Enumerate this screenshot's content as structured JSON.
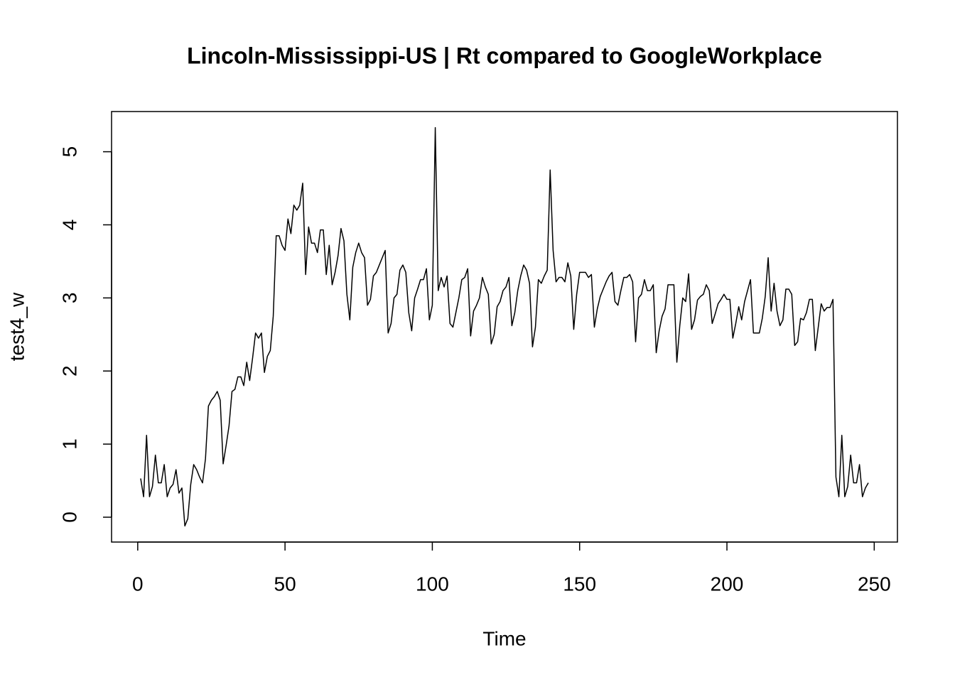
{
  "chart_data": {
    "type": "line",
    "title": "Lincoln-Mississippi-US | Rt compared to GoogleWorkplace",
    "xlabel": "Time",
    "ylabel": "test4_w",
    "color": "#000000",
    "x": [
      1,
      2,
      3,
      4,
      5,
      6,
      7,
      8,
      9,
      10,
      11,
      12,
      13,
      14,
      15,
      16,
      17,
      18,
      19,
      20,
      21,
      22,
      23,
      24,
      25,
      26,
      27,
      28,
      29,
      30,
      31,
      32,
      33,
      34,
      35,
      36,
      37,
      38,
      39,
      40,
      41,
      42,
      43,
      44,
      45,
      46,
      47,
      48,
      49,
      50,
      51,
      52,
      53,
      54,
      55,
      56,
      57,
      58,
      59,
      60,
      61,
      62,
      63,
      64,
      65,
      66,
      67,
      68,
      69,
      70,
      71,
      72,
      73,
      74,
      75,
      76,
      77,
      78,
      79,
      80,
      81,
      82,
      83,
      84,
      85,
      86,
      87,
      88,
      89,
      90,
      91,
      92,
      93,
      94,
      95,
      96,
      97,
      98,
      99,
      100,
      101,
      102,
      103,
      104,
      105,
      106,
      107,
      108,
      109,
      110,
      111,
      112,
      113,
      114,
      115,
      116,
      117,
      118,
      119,
      120,
      121,
      122,
      123,
      124,
      125,
      126,
      127,
      128,
      129,
      130,
      131,
      132,
      133,
      134,
      135,
      136,
      137,
      138,
      139,
      140,
      141,
      142,
      143,
      144,
      145,
      146,
      147,
      148,
      149,
      150,
      151,
      152,
      153,
      154,
      155,
      156,
      157,
      158,
      159,
      160,
      161,
      162,
      163,
      164,
      165,
      166,
      167,
      168,
      169,
      170,
      171,
      172,
      173,
      174,
      175,
      176,
      177,
      178,
      179,
      180,
      181,
      182,
      183,
      184,
      185,
      186,
      187,
      188,
      189,
      190,
      191,
      192,
      193,
      194,
      195,
      196,
      197,
      198,
      199,
      200,
      201,
      202,
      203,
      204,
      205,
      206,
      207,
      208,
      209,
      210,
      211,
      212,
      213,
      214,
      215,
      216,
      217,
      218,
      219,
      220,
      221,
      222,
      223,
      224,
      225,
      226,
      227,
      228,
      229,
      230,
      231,
      232,
      233,
      234,
      235,
      236,
      237,
      238,
      239,
      240,
      241,
      242,
      243,
      244,
      245,
      246,
      247,
      248
    ],
    "values": [
      0.53,
      0.28,
      1.12,
      0.28,
      0.42,
      0.85,
      0.47,
      0.47,
      0.72,
      0.28,
      0.4,
      0.45,
      0.65,
      0.33,
      0.4,
      -0.12,
      -0.02,
      0.45,
      0.72,
      0.65,
      0.55,
      0.47,
      0.8,
      1.52,
      1.6,
      1.65,
      1.72,
      1.6,
      0.73,
      0.98,
      1.25,
      1.72,
      1.75,
      1.92,
      1.92,
      1.8,
      2.12,
      1.87,
      2.18,
      2.52,
      2.45,
      2.52,
      1.98,
      2.2,
      2.28,
      2.75,
      3.85,
      3.85,
      3.72,
      3.65,
      4.08,
      3.88,
      4.27,
      4.2,
      4.27,
      4.57,
      3.32,
      3.97,
      3.75,
      3.75,
      3.62,
      3.93,
      3.93,
      3.32,
      3.72,
      3.18,
      3.35,
      3.58,
      3.95,
      3.78,
      3.05,
      2.7,
      3.42,
      3.62,
      3.75,
      3.62,
      3.55,
      2.9,
      2.98,
      3.3,
      3.35,
      3.45,
      3.55,
      3.65,
      2.52,
      2.65,
      3.0,
      3.05,
      3.38,
      3.45,
      3.35,
      2.8,
      2.55,
      3.0,
      3.12,
      3.25,
      3.25,
      3.4,
      2.7,
      2.9,
      5.33,
      3.1,
      3.28,
      3.15,
      3.3,
      2.65,
      2.6,
      2.8,
      3.0,
      3.25,
      3.28,
      3.4,
      2.48,
      2.82,
      2.9,
      3.0,
      3.28,
      3.15,
      3.05,
      2.37,
      2.5,
      2.88,
      2.95,
      3.1,
      3.15,
      3.28,
      2.62,
      2.8,
      3.1,
      3.3,
      3.45,
      3.38,
      3.2,
      2.33,
      2.6,
      3.25,
      3.2,
      3.3,
      3.38,
      4.75,
      3.65,
      3.22,
      3.28,
      3.28,
      3.22,
      3.48,
      3.3,
      2.57,
      3.05,
      3.35,
      3.35,
      3.35,
      3.28,
      3.32,
      2.6,
      2.85,
      3.02,
      3.12,
      3.22,
      3.3,
      3.35,
      2.95,
      2.9,
      3.1,
      3.28,
      3.28,
      3.32,
      3.22,
      2.4,
      3.0,
      3.05,
      3.25,
      3.1,
      3.1,
      3.18,
      2.25,
      2.55,
      2.75,
      2.85,
      3.18,
      3.18,
      3.18,
      2.12,
      2.62,
      3.0,
      2.95,
      3.33,
      2.57,
      2.7,
      2.97,
      3.02,
      3.05,
      3.18,
      3.1,
      2.65,
      2.78,
      2.92,
      2.98,
      3.05,
      2.98,
      2.98,
      2.45,
      2.65,
      2.88,
      2.7,
      2.95,
      3.1,
      3.25,
      2.52,
      2.52,
      2.52,
      2.72,
      3.02,
      3.55,
      2.82,
      3.2,
      2.82,
      2.62,
      2.7,
      3.12,
      3.12,
      3.05,
      2.35,
      2.4,
      2.72,
      2.7,
      2.8,
      2.98,
      2.98,
      2.28,
      2.6,
      2.92,
      2.82,
      2.87,
      2.87,
      2.98,
      0.55,
      0.28,
      1.12,
      0.28,
      0.42,
      0.85,
      0.47,
      0.47,
      0.72,
      0.28,
      0.4,
      0.47
    ],
    "xlim": [
      -8.88,
      257.88
    ],
    "ylim": [
      -0.34,
      5.55
    ],
    "xticks": [
      0,
      50,
      100,
      150,
      200,
      250
    ],
    "yticks": [
      0,
      1,
      2,
      3,
      4,
      5
    ]
  }
}
